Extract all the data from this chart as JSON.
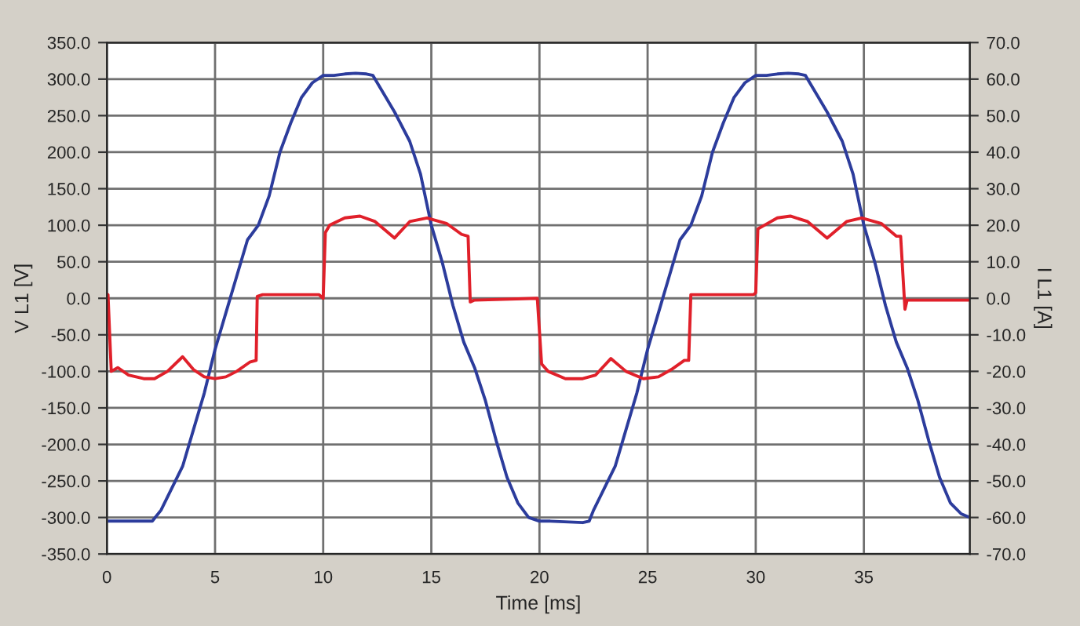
{
  "chart_data": {
    "type": "line",
    "xlabel": "Time [ms]",
    "ylabel": "V L1 [V]",
    "y2label": "I L1 [A]",
    "xlim": [
      0,
      39.9
    ],
    "xticks": [
      0,
      5,
      10,
      15,
      20,
      25,
      30,
      35
    ],
    "ylim": [
      -350,
      350
    ],
    "yticks": [
      {
        "value": -350,
        "label": "-350.0"
      },
      {
        "value": -300,
        "label": "-300.0"
      },
      {
        "value": -250,
        "label": "-250.0"
      },
      {
        "value": -200,
        "label": "-200.0"
      },
      {
        "value": -150,
        "label": "-150.0"
      },
      {
        "value": -100,
        "label": "-100.0"
      },
      {
        "value": -50,
        "label": "-50.0"
      },
      {
        "value": 0,
        "label": "0.0"
      },
      {
        "value": 50,
        "label": "50.0"
      },
      {
        "value": 100,
        "label": "100.0"
      },
      {
        "value": 150,
        "label": "150.0"
      },
      {
        "value": 200,
        "label": "200.0"
      },
      {
        "value": 250,
        "label": "250.0"
      },
      {
        "value": 300,
        "label": "300.0"
      },
      {
        "value": 350,
        "label": "350.0"
      }
    ],
    "y2lim": [
      -70,
      70
    ],
    "y2ticks": [
      {
        "value": -70,
        "label": "-70.0"
      },
      {
        "value": -60,
        "label": "-60.0"
      },
      {
        "value": -50,
        "label": "-50.0"
      },
      {
        "value": -40,
        "label": "-40.0"
      },
      {
        "value": -30,
        "label": "-30.0"
      },
      {
        "value": -20,
        "label": "-20.0"
      },
      {
        "value": -10,
        "label": "-10.0"
      },
      {
        "value": 0,
        "label": "0.0"
      },
      {
        "value": 10,
        "label": "10.0"
      },
      {
        "value": 20,
        "label": "20.0"
      },
      {
        "value": 30,
        "label": "30.0"
      },
      {
        "value": 40,
        "label": "40.0"
      },
      {
        "value": 50,
        "label": "50.0"
      },
      {
        "value": 60,
        "label": "60.0"
      },
      {
        "value": 70,
        "label": "70.0"
      }
    ],
    "grid": true,
    "marker": "none",
    "line_style": "solid",
    "series": [
      {
        "color": "#2c3c9c",
        "x": [
          0,
          2.1,
          2.5,
          3,
          3.5,
          4,
          4.5,
          5,
          5.5,
          6,
          6.5,
          7,
          7.5,
          8,
          8.5,
          9,
          9.5,
          10,
          10.5,
          11,
          11.5,
          12,
          12.3,
          12.8,
          13.3,
          14,
          14.5,
          15,
          15.5,
          16,
          16.5,
          17,
          17.5,
          18,
          18.5,
          19,
          19.5,
          20,
          20.5,
          22,
          22.3,
          22.5,
          23,
          23.5,
          24,
          24.5,
          25,
          25.5,
          26,
          26.5,
          27,
          27.5,
          28,
          28.5,
          29,
          29.5,
          30,
          30.5,
          31,
          31.5,
          32,
          32.3,
          32.8,
          33.3,
          34,
          34.5,
          35,
          35.5,
          36,
          36.5,
          37,
          37.5,
          38,
          38.5,
          39,
          39.5,
          39.9
        ],
        "values": [
          -305,
          -305,
          -290,
          -260,
          -230,
          -180,
          -130,
          -70,
          -20,
          30,
          80,
          100,
          140,
          200,
          240,
          275,
          295,
          305,
          305,
          307,
          308,
          307,
          305,
          280,
          255,
          215,
          170,
          100,
          50,
          -10,
          -60,
          -95,
          -140,
          -195,
          -245,
          -280,
          -300,
          -305,
          -305,
          -307,
          -305,
          -290,
          -260,
          -230,
          -180,
          -130,
          -70,
          -20,
          30,
          80,
          100,
          140,
          200,
          240,
          275,
          295,
          305,
          305,
          307,
          308,
          307,
          305,
          280,
          255,
          215,
          170,
          100,
          50,
          -10,
          -60,
          -95,
          -140,
          -195,
          -245,
          -280,
          -295,
          -300
        ]
      },
      {
        "color": "#e0202a",
        "axis": "y2",
        "x": [
          0,
          0.05,
          0.2,
          0.5,
          1,
          1.7,
          2.2,
          2.8,
          3.5,
          4,
          4.5,
          5,
          5.5,
          6,
          6.6,
          6.9,
          6.95,
          7.2,
          9.8,
          10,
          10.1,
          10.3,
          11,
          11.7,
          12.4,
          13.3,
          14,
          14.8,
          15.7,
          16.4,
          16.7,
          16.8,
          17,
          19.9,
          20.1,
          20.4,
          21.2,
          22,
          22.6,
          23.3,
          24,
          24.8,
          25.5,
          26.1,
          26.7,
          26.9,
          27,
          29.9,
          30,
          30.1,
          30.4,
          31,
          31.6,
          32.4,
          33.3,
          34.2,
          34.9,
          35.8,
          36.5,
          36.7,
          36.9,
          37,
          39.9
        ],
        "values": [
          0.5,
          1,
          -20,
          -19,
          -21,
          -22,
          -22,
          -20,
          -16,
          -19.5,
          -21.5,
          -22,
          -21.5,
          -20,
          -17.5,
          -17,
          0.5,
          1,
          1,
          0,
          18,
          20,
          22,
          22.5,
          21,
          16.5,
          21,
          22,
          20.5,
          17.5,
          17,
          -1,
          -0.5,
          0,
          -18,
          -20,
          -22,
          -22,
          -21,
          -16.5,
          -20,
          -22,
          -21.5,
          -19.5,
          -17,
          -17,
          1,
          1,
          1.5,
          19,
          20,
          22,
          22.5,
          21,
          16.5,
          21,
          22,
          20.5,
          17,
          17,
          -3,
          -0.5,
          -0.5
        ]
      }
    ]
  }
}
